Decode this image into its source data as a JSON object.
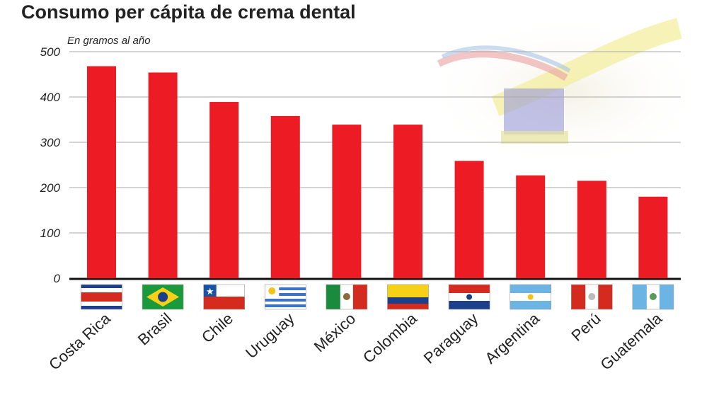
{
  "title": "Consumo per cápita de crema dental",
  "chart_data": {
    "type": "bar",
    "title": "Consumo per cápita de crema dental",
    "subtitle": "En gramos al año",
    "categories": [
      "Costa Rica",
      "Brasil",
      "Chile",
      "Uruguay",
      "México",
      "Colombia",
      "Paraguay",
      "Argentina",
      "Perú",
      "Guatemala"
    ],
    "values": [
      468,
      454,
      389,
      358,
      339,
      339,
      259,
      227,
      215,
      180
    ],
    "ylim": [
      0,
      500
    ],
    "yticks": [
      0,
      100,
      200,
      300,
      400,
      500
    ],
    "ytick_labels": [
      "0",
      "100",
      "200",
      "300",
      "400",
      "500"
    ],
    "grid": true,
    "bar_color": "#ed1c24",
    "legend": "none"
  }
}
